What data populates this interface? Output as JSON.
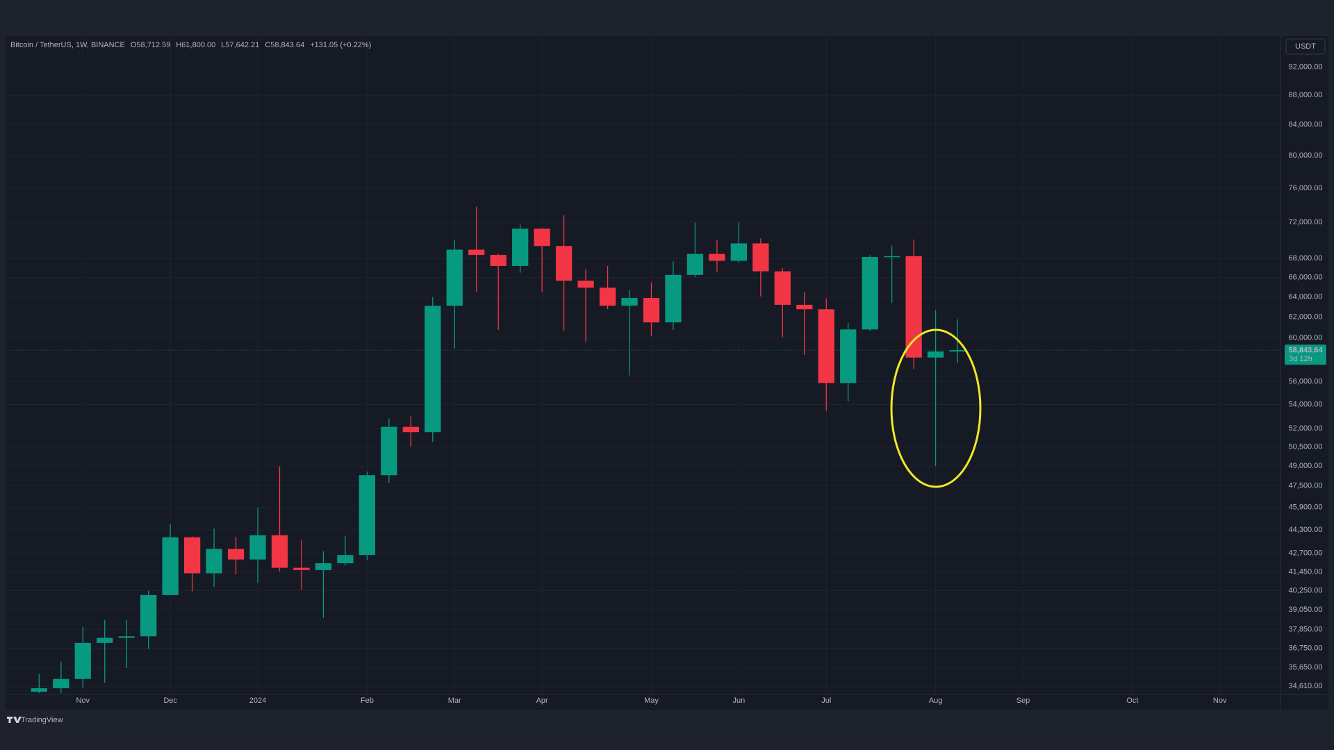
{
  "chart_data": {
    "type": "candlestick",
    "title": "Bitcoin / TetherUS, 1W, BINANCE",
    "ohlc_labels": [
      "O58,712.59",
      "H61,800.00",
      "L57,642.21",
      "C58,843.64"
    ],
    "change_label": "+131.05 (+0.22%)",
    "currency": "USDT",
    "last_price_label": "58,843.64",
    "countdown": "3d 12h",
    "brand": "TradingView",
    "up_color": "#089981",
    "down_color": "#f23645",
    "log_scale": true,
    "grid": true,
    "categories": [
      null,
      null,
      "Nov",
      null,
      null,
      null,
      "Dec",
      null,
      null,
      null,
      "2024",
      null,
      null,
      null,
      null,
      "Feb",
      null,
      null,
      null,
      "Mar",
      null,
      null,
      null,
      "Apr",
      null,
      null,
      null,
      null,
      "May",
      null,
      null,
      null,
      "Jun",
      null,
      null,
      null,
      "Jul",
      null,
      null,
      null,
      null,
      "Aug",
      null,
      null,
      null,
      "Sep",
      null,
      null,
      null,
      null,
      "Oct",
      null,
      null,
      null,
      "Nov",
      null,
      null
    ],
    "open": [
      34310,
      34500,
      35010,
      37060,
      37360,
      37450,
      39970,
      43790,
      41370,
      42990,
      42280,
      43930,
      41730,
      41580,
      42030,
      42580,
      48300,
      52130,
      51700,
      63110,
      68960,
      68390,
      67210,
      71280,
      69360,
      65660,
      64940,
      63120,
      63900,
      61480,
      66270,
      68500,
      67760,
      69650,
      66640,
      63210,
      62770,
      55860,
      60800,
      68170,
      68260,
      58160,
      58712.59,
      null,
      null,
      null,
      null,
      null,
      null,
      null,
      null,
      null,
      null,
      null,
      null,
      null,
      null
    ],
    "high": [
      35280,
      35980,
      38000,
      38430,
      38420,
      40250,
      44700,
      43840,
      44400,
      43800,
      45900,
      48970,
      43580,
      42840,
      43880,
      48580,
      52820,
      53000,
      64000,
      70000,
      73800,
      68500,
      71770,
      71340,
      72800,
      66900,
      67200,
      64700,
      65500,
      67700,
      71980,
      70000,
      72000,
      70200,
      66980,
      64500,
      63850,
      61420,
      68370,
      69400,
      70080,
      62700,
      61800,
      null,
      null,
      null,
      null,
      null,
      null,
      null,
      null,
      null,
      null,
      null,
      null,
      null,
      null
    ],
    "low": [
      34080,
      34080,
      34520,
      34800,
      35630,
      36700,
      39970,
      40200,
      40500,
      41300,
      40750,
      41500,
      40280,
      38560,
      41880,
      42250,
      47700,
      50520,
      50900,
      59000,
      64500,
      60760,
      66500,
      64500,
      60660,
      59600,
      62790,
      56550,
      60190,
      60750,
      66060,
      66600,
      67520,
      64060,
      60050,
      58400,
      53490,
      54260,
      60630,
      63400,
      57120,
      49000,
      57642.21,
      null,
      null,
      null,
      null,
      null,
      null,
      null,
      null,
      null,
      null,
      null,
      null,
      null,
      null
    ],
    "close": [
      34500,
      35010,
      37060,
      37360,
      37450,
      39970,
      43790,
      41370,
      42990,
      42280,
      43930,
      41730,
      41580,
      42030,
      42580,
      48300,
      52130,
      51700,
      63110,
      68960,
      68390,
      67210,
      71280,
      69360,
      65660,
      64940,
      63120,
      63900,
      61480,
      66270,
      68500,
      67760,
      69650,
      66640,
      63210,
      62770,
      55860,
      60800,
      68170,
      68260,
      58160,
      58712.59,
      58843.64,
      null,
      null,
      null,
      null,
      null,
      null,
      null,
      null,
      null,
      null,
      null,
      null,
      null,
      null
    ],
    "ylim": [
      34240,
      96300
    ],
    "yticks": [
      {
        "value": 92000,
        "label": "92,000.00"
      },
      {
        "value": 88000,
        "label": "88,000.00"
      },
      {
        "value": 84000,
        "label": "84,000.00"
      },
      {
        "value": 80000,
        "label": "80,000.00"
      },
      {
        "value": 76000,
        "label": "76,000.00"
      },
      {
        "value": 72000,
        "label": "72,000.00"
      },
      {
        "value": 68000,
        "label": "68,000.00"
      },
      {
        "value": 66000,
        "label": "66,000.00"
      },
      {
        "value": 64000,
        "label": "64,000.00"
      },
      {
        "value": 62000,
        "label": "62,000.00"
      },
      {
        "value": 60000,
        "label": "60,000.00"
      },
      {
        "value": 56000,
        "label": "56,000.00"
      },
      {
        "value": 54000,
        "label": "54,000.00"
      },
      {
        "value": 52000,
        "label": "52,000.00"
      },
      {
        "value": 50500,
        "label": "50,500.00"
      },
      {
        "value": 49000,
        "label": "49,000.00"
      },
      {
        "value": 47500,
        "label": "47,500.00"
      },
      {
        "value": 45900,
        "label": "45,900.00"
      },
      {
        "value": 44300,
        "label": "44,300.00"
      },
      {
        "value": 42700,
        "label": "42,700.00"
      },
      {
        "value": 41450,
        "label": "41,450.00"
      },
      {
        "value": 40250,
        "label": "40,250.00"
      },
      {
        "value": 39050,
        "label": "39,050.00"
      },
      {
        "value": 37850,
        "label": "37,850.00"
      },
      {
        "value": 36750,
        "label": "36,750.00"
      },
      {
        "value": 35650,
        "label": "35,650.00"
      },
      {
        "value": 34610,
        "label": "34,610.00"
      }
    ]
  }
}
